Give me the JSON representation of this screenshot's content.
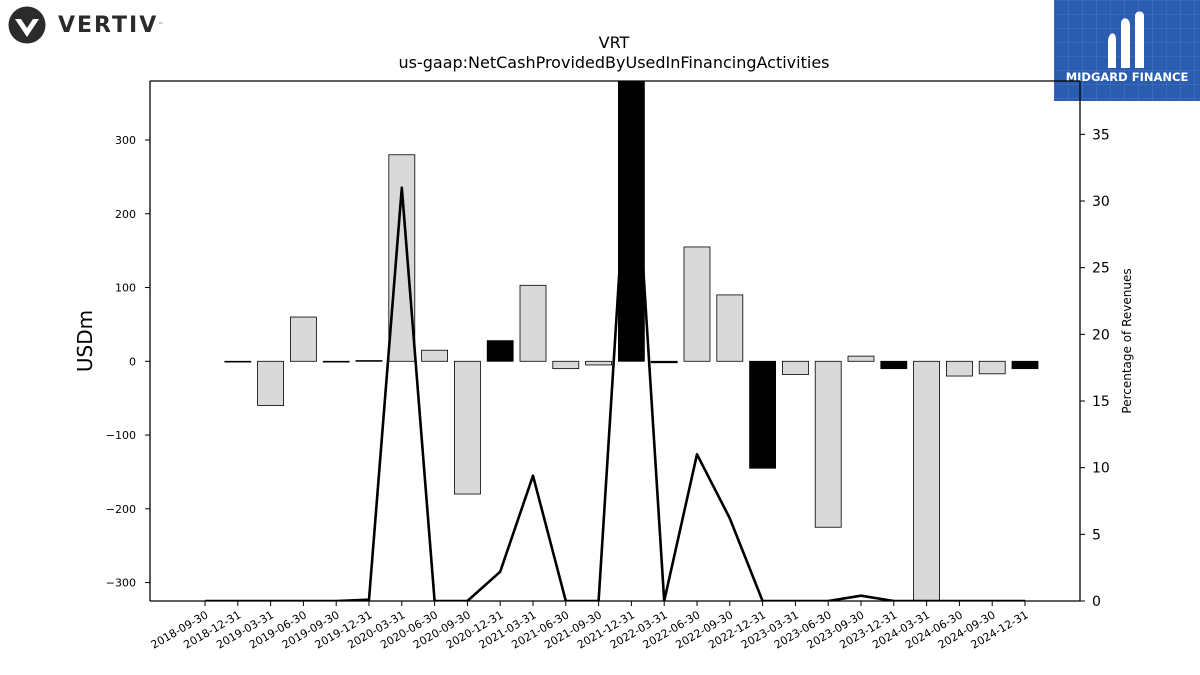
{
  "logos": {
    "left_brand": "VERTIV",
    "left_tm": "™",
    "right_brand": "MIDGARD FINANCE"
  },
  "chart_data": {
    "type": "bar",
    "title": "VRT",
    "subtitle": "us-gaap:NetCashProvidedByUsedInFinancingActivities",
    "ylabel": "USDm",
    "ylabel_right": "Percentage of Revenues",
    "ylim": [
      -325,
      380
    ],
    "ylim_right": [
      0,
      39
    ],
    "yticks": [
      -300,
      -200,
      -100,
      0,
      100,
      200,
      300
    ],
    "yticks_right": [
      0,
      5,
      10,
      15,
      20,
      25,
      30,
      35
    ],
    "categories": [
      "2018-09-30",
      "2018-12-31",
      "2019-03-31",
      "2019-06-30",
      "2019-09-30",
      "2019-12-31",
      "2020-03-31",
      "2020-06-30",
      "2020-09-30",
      "2020-12-31",
      "2021-03-31",
      "2021-06-30",
      "2021-09-30",
      "2021-12-31",
      "2022-03-31",
      "2022-06-30",
      "2022-09-30",
      "2022-12-31",
      "2023-03-31",
      "2023-06-30",
      "2023-09-30",
      "2023-12-31",
      "2024-03-31",
      "2024-06-30",
      "2024-09-30",
      "2024-12-31"
    ],
    "bar_categories": [
      "2018-12-31",
      "2019-03-31",
      "2019-06-30",
      "2019-09-30",
      "2019-12-31",
      "2020-03-31",
      "2020-06-30",
      "2020-09-30",
      "2020-12-31",
      "2021-03-31",
      "2021-06-30",
      "2021-09-30",
      "2021-12-31",
      "2022-03-31",
      "2022-06-30",
      "2022-09-30",
      "2022-12-31",
      "2023-03-31",
      "2023-06-30",
      "2023-09-30",
      "2023-12-31",
      "2024-03-31",
      "2024-06-30",
      "2024-09-30",
      "2024-12-31"
    ],
    "series": [
      {
        "values": [
          -1,
          -1,
          -60,
          60,
          -1,
          1,
          280,
          15,
          -180,
          28,
          103,
          -10,
          -5,
          380,
          -2,
          155,
          90,
          -145,
          -18,
          -225,
          7,
          -10,
          -325,
          -20,
          -17,
          -10
        ],
        "fill_colors": [
          "#d9d9d9",
          "#d9d9d9",
          "#d9d9d9",
          "#d9d9d9",
          "#d9d9d9",
          "#000000",
          "#d9d9d9",
          "#d9d9d9",
          "#d9d9d9",
          "#000000",
          "#d9d9d9",
          "#d9d9d9",
          "#d9d9d9",
          "#000000",
          "#000000",
          "#d9d9d9",
          "#d9d9d9",
          "#000000",
          "#d9d9d9",
          "#d9d9d9",
          "#d9d9d9",
          "#000000",
          "#d9d9d9",
          "#d9d9d9",
          "#d9d9d9",
          "#000000"
        ]
      },
      {
        "type": "line",
        "axis": "right",
        "x": [
          "2018-09-30",
          "2018-12-31",
          "2019-03-31",
          "2019-06-30",
          "2019-09-30",
          "2019-12-31",
          "2020-03-31",
          "2020-06-30",
          "2020-09-30",
          "2020-12-31",
          "2021-03-31",
          "2021-06-30",
          "2021-09-30",
          "2021-12-31",
          "2022-03-31",
          "2022-06-30",
          "2022-09-30",
          "2022-12-31",
          "2023-03-31",
          "2023-06-30",
          "2023-09-30",
          "2023-12-31",
          "2024-03-31",
          "2024-06-30",
          "2024-09-30",
          "2024-12-31"
        ],
        "values": [
          0,
          0,
          0,
          0,
          0,
          0.1,
          31,
          0,
          0,
          2.2,
          9.4,
          0,
          0,
          39,
          0,
          11,
          6.2,
          0,
          0,
          0,
          0.4,
          0,
          0,
          0,
          0,
          0
        ]
      }
    ],
    "bar_values": [
      -1,
      -60,
      60,
      -1,
      1,
      280,
      15,
      -180,
      28,
      103,
      -10,
      -5,
      380,
      -2,
      155,
      90,
      -145,
      -18,
      -225,
      7,
      -10,
      -325,
      -20,
      -17,
      -10
    ],
    "bar_colors": [
      "#d9d9d9",
      "#d9d9d9",
      "#d9d9d9",
      "#d9d9d9",
      "#000000",
      "#d9d9d9",
      "#d9d9d9",
      "#d9d9d9",
      "#000000",
      "#d9d9d9",
      "#d9d9d9",
      "#d9d9d9",
      "#000000",
      "#000000",
      "#d9d9d9",
      "#d9d9d9",
      "#000000",
      "#d9d9d9",
      "#d9d9d9",
      "#d9d9d9",
      "#000000",
      "#d9d9d9",
      "#d9d9d9",
      "#d9d9d9",
      "#000000"
    ],
    "line_values": [
      0,
      0,
      0,
      0,
      0,
      0.1,
      31,
      0,
      0,
      2.2,
      9.4,
      0,
      0,
      39,
      0,
      11,
      6.2,
      0,
      0,
      0,
      0.4,
      0,
      0,
      0,
      0,
      0
    ],
    "grid": false,
    "legend": "none"
  }
}
